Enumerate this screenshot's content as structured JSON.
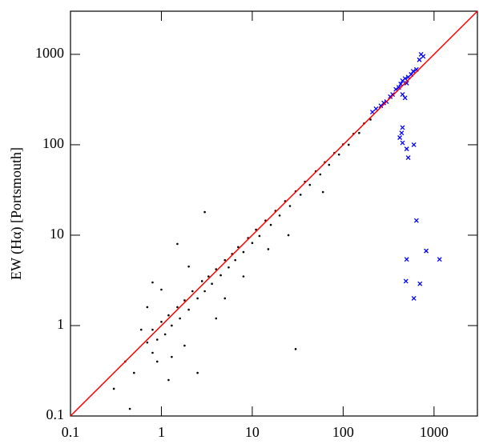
{
  "chart_data": {
    "type": "scatter",
    "ylabel": "EW (Hα) [Portsmouth]",
    "xscale": "log",
    "yscale": "log",
    "xlim": [
      0.1,
      3000
    ],
    "ylim": [
      0.1,
      3000
    ],
    "xticks": [
      0.1,
      1,
      10,
      100,
      1000
    ],
    "yticks": [
      0.1,
      1,
      10,
      100,
      1000
    ],
    "identity_line": true,
    "identity_color": "#ff0000",
    "series": [
      {
        "color": "#000000",
        "marker": "dot",
        "x": [
          0.7,
          0.8,
          0.9,
          1.0,
          1.1,
          1.2,
          1.3,
          1.5,
          1.6,
          1.8,
          2,
          2.2,
          2.5,
          2.8,
          3,
          3.3,
          3.6,
          4,
          4.5,
          5,
          5.5,
          6,
          6.5,
          7,
          8,
          9,
          10,
          11,
          12,
          14,
          16,
          18,
          20,
          23,
          26,
          30,
          34,
          38,
          43,
          50,
          56,
          63,
          70,
          80,
          90,
          100,
          115,
          130,
          150,
          170,
          200,
          0.9,
          0.5,
          0.45,
          0.3,
          0.6,
          0.8,
          1.5,
          3,
          2.5,
          1.2,
          0.7,
          30,
          1.8,
          0.4,
          5,
          2,
          8,
          15,
          4,
          1,
          0.8,
          1.3,
          25,
          60
        ],
        "values": [
          0.65,
          0.9,
          0.7,
          1.1,
          0.8,
          1.3,
          1.0,
          1.6,
          1.2,
          1.9,
          1.5,
          2.4,
          2.0,
          3.1,
          2.4,
          3.5,
          2.9,
          4.2,
          3.6,
          5.3,
          4.4,
          6.2,
          5.3,
          7.4,
          6.5,
          9.3,
          8.2,
          11.5,
          9.8,
          14.5,
          13,
          18.6,
          16.5,
          23.8,
          21,
          30.5,
          28,
          39,
          36,
          51,
          47,
          64,
          60,
          81,
          78,
          101,
          100,
          132,
          135,
          172,
          190,
          0.4,
          0.3,
          0.12,
          0.2,
          0.9,
          3,
          8,
          18,
          0.3,
          0.25,
          1.6,
          0.55,
          0.6,
          0.4,
          2,
          4.5,
          3.5,
          7,
          1.2,
          2.5,
          0.5,
          0.45,
          10,
          30
        ]
      },
      {
        "color": "#0000ff",
        "marker": "cross",
        "x": [
          720,
          760,
          690,
          640,
          590,
          560,
          520,
          480,
          450,
          500,
          430,
          410,
          380,
          350,
          330,
          300,
          280,
          260,
          230,
          210,
          450,
          480,
          450,
          440,
          420,
          450,
          500,
          600,
          520,
          640,
          820,
          1150,
          500,
          490,
          700,
          600
        ],
        "values": [
          1000,
          950,
          870,
          680,
          650,
          600,
          560,
          540,
          510,
          480,
          470,
          430,
          410,
          360,
          340,
          300,
          290,
          270,
          250,
          230,
          360,
          330,
          155,
          135,
          120,
          105,
          90,
          100,
          72,
          14.5,
          6.7,
          5.4,
          5.4,
          3.1,
          2.9,
          2.0
        ]
      }
    ]
  }
}
